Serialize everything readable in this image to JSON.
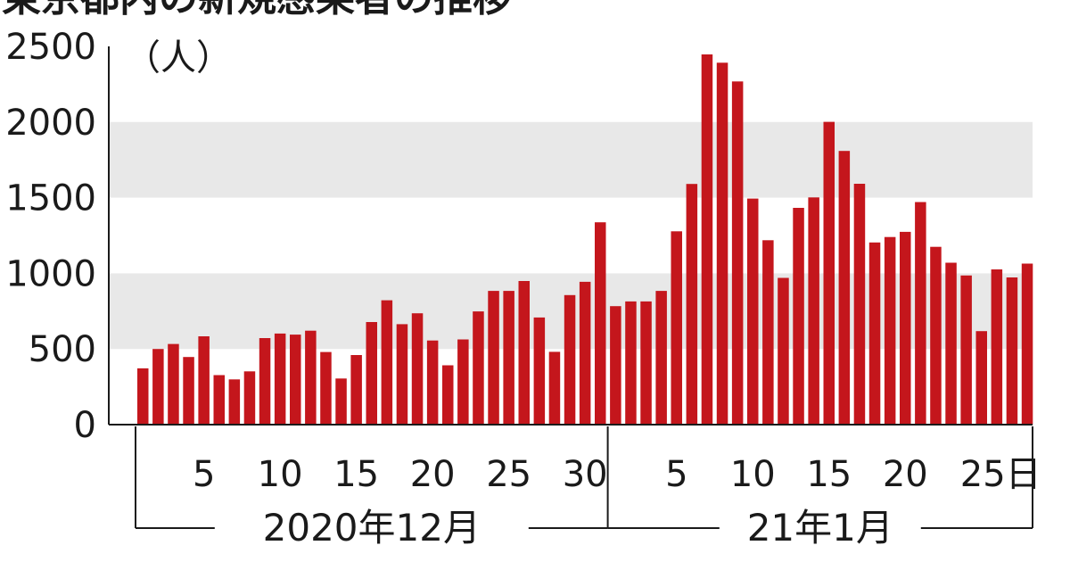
{
  "chart_data": {
    "type": "bar",
    "title": "東京都内の新規感染者の推移",
    "ylabel": "（人）",
    "ylim": [
      0,
      2500
    ],
    "yticks": [
      0,
      500,
      1000,
      1500,
      2000,
      2500
    ],
    "grid_bands": true,
    "colors": {
      "bar": "#c4161c",
      "band": "#e8e8e8",
      "axis": "#1a1a1a"
    },
    "periods": [
      {
        "label": "2020年12月",
        "days": 31,
        "tick_labels": [
          "5",
          "10",
          "15",
          "20",
          "25",
          "30"
        ]
      },
      {
        "label": "21年1月",
        "days": 28,
        "tick_labels": [
          "5",
          "10",
          "15",
          "20",
          "25"
        ],
        "day_suffix": "日"
      }
    ],
    "series": [
      {
        "values": [
          372,
          500,
          533,
          447,
          584,
          327,
          299,
          352,
          572,
          602,
          595,
          621,
          480,
          305,
          460,
          678,
          822,
          664,
          736,
          556,
          392,
          563,
          748,
          884,
          884,
          949,
          708,
          481,
          856,
          944,
          1337,
          783,
          814,
          814,
          884,
          1278,
          1591,
          2447,
          2392,
          2268,
          1494,
          1219,
          970,
          1433,
          1502,
          2001,
          1809,
          1592,
          1204,
          1240,
          1274,
          1471,
          1175,
          1070,
          986,
          618,
          1026,
          973,
          1064
        ]
      }
    ]
  }
}
